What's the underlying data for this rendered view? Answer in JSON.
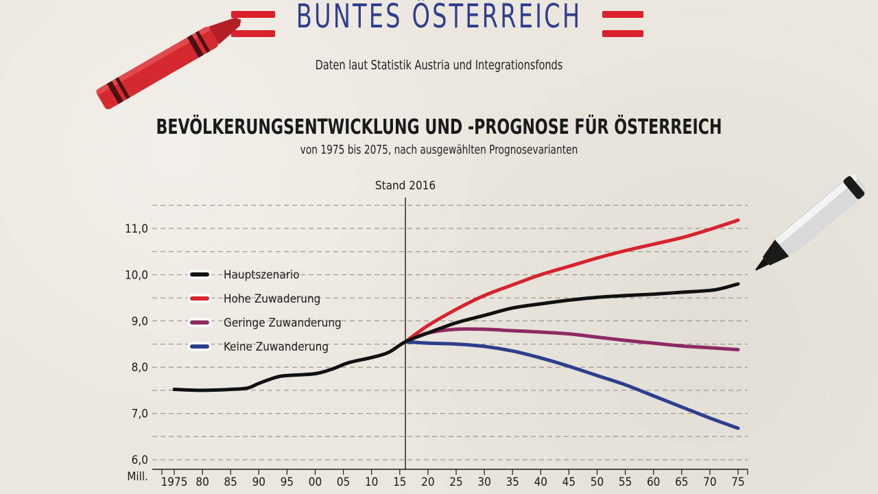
{
  "header": {
    "brand": "BUNTES ÖSTERREICH",
    "source": "Daten laut Statistik Austria und Integrationsfonds"
  },
  "chart_data": {
    "type": "line",
    "title": "BEVÖLKERUNGSENTWICKLUNG UND -PROGNOSE FÜR ÖSTERREICH",
    "subtitle": "von 1975 bis 2075, nach ausgewählten Prognosevarianten",
    "annotation": "Stand 2016",
    "annotation_x": 2016,
    "ylabel": "Mill.",
    "ylim": [
      6.0,
      11.5
    ],
    "yticks": [
      "6,0",
      "7,0",
      "8,0",
      "9,0",
      "10,0",
      "11,0"
    ],
    "xticks": [
      "1975",
      "80",
      "85",
      "90",
      "95",
      "00",
      "05",
      "10",
      "15",
      "20",
      "25",
      "30",
      "35",
      "40",
      "45",
      "50",
      "55",
      "60",
      "65",
      "70",
      "75"
    ],
    "grid": "dashed horizontal",
    "legend_position": "left",
    "colors": {
      "Hauptszenario": "#111111",
      "Hohe Zuwaderung": "#d8232c",
      "Geringe Zuwanderung": "#8e2a63",
      "Keine Zuwanderung": "#2b3f8c"
    },
    "series": [
      {
        "name": "Hauptszenario",
        "x": [
          1975,
          1980,
          1985,
          1988,
          1990,
          1993,
          1995,
          2000,
          2003,
          2006,
          2010,
          2013,
          2016,
          2020,
          2025,
          2030,
          2035,
          2040,
          2045,
          2050,
          2055,
          2060,
          2065,
          2070,
          2072,
          2075
        ],
        "y": [
          7.52,
          7.5,
          7.52,
          7.55,
          7.65,
          7.78,
          7.82,
          7.86,
          7.96,
          8.1,
          8.21,
          8.32,
          8.55,
          8.74,
          8.96,
          9.12,
          9.28,
          9.37,
          9.45,
          9.51,
          9.55,
          9.58,
          9.62,
          9.66,
          9.7,
          9.8
        ]
      },
      {
        "name": "Hohe Zuwaderung",
        "x": [
          2016,
          2020,
          2025,
          2030,
          2035,
          2040,
          2045,
          2050,
          2055,
          2060,
          2065,
          2070,
          2075
        ],
        "y": [
          8.55,
          8.9,
          9.25,
          9.55,
          9.78,
          10.0,
          10.18,
          10.36,
          10.52,
          10.66,
          10.8,
          10.98,
          11.18
        ]
      },
      {
        "name": "Geringe Zuwanderung",
        "x": [
          2016,
          2020,
          2025,
          2030,
          2035,
          2040,
          2045,
          2050,
          2055,
          2060,
          2065,
          2070,
          2075
        ],
        "y": [
          8.55,
          8.74,
          8.82,
          8.82,
          8.79,
          8.76,
          8.72,
          8.65,
          8.58,
          8.52,
          8.46,
          8.42,
          8.38
        ]
      },
      {
        "name": "Keine Zuwanderung",
        "x": [
          2016,
          2020,
          2025,
          2030,
          2035,
          2040,
          2045,
          2050,
          2055,
          2060,
          2065,
          2070,
          2075
        ],
        "y": [
          8.55,
          8.52,
          8.5,
          8.45,
          8.35,
          8.2,
          8.02,
          7.82,
          7.62,
          7.38,
          7.14,
          6.9,
          6.68
        ]
      }
    ]
  }
}
